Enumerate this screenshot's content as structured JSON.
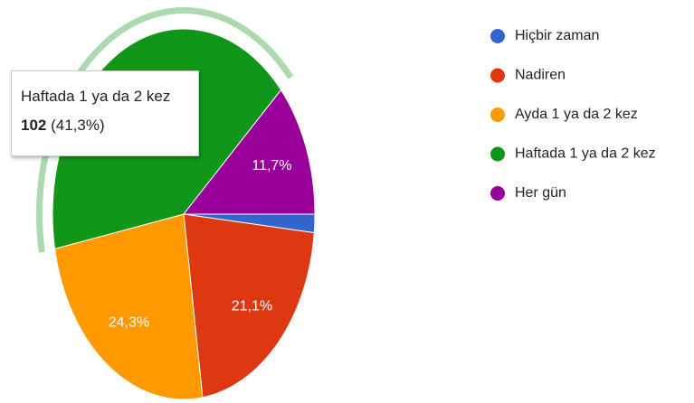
{
  "chart_data": {
    "type": "pie",
    "categories": [
      "Hiçbir zaman",
      "Nadiren",
      "Ayda 1 ya da 2 kez",
      "Haftada 1 ya da 2 kez",
      "Her gün"
    ],
    "values": [
      1.6,
      21.1,
      24.3,
      41.3,
      11.7
    ],
    "value_labels": [
      null,
      "21,1%",
      "24,3%",
      null,
      "11,7%"
    ],
    "colors": [
      "#3366cc",
      "#dc3912",
      "#ff9900",
      "#109618",
      "#990099"
    ],
    "start_angle": 90,
    "highlighted": 3,
    "legend": "right",
    "tooltip": {
      "title": "Haftada 1 ya da 2 kez",
      "count": 102,
      "percent": "(41,3%)"
    }
  }
}
